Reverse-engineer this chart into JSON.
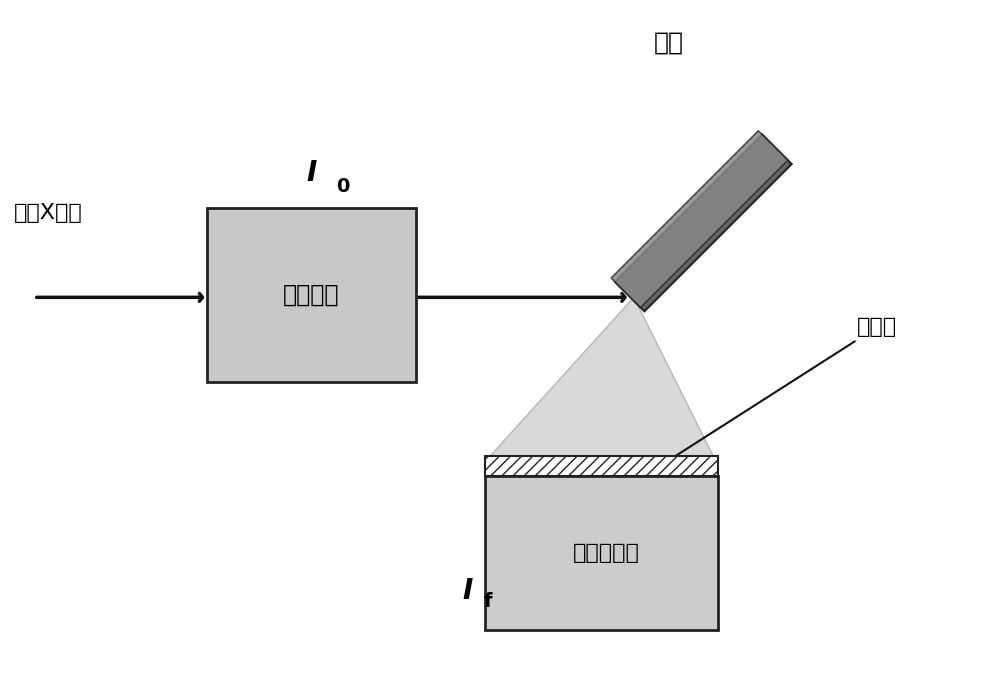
{
  "bg_color": "#ffffff",
  "fig_width": 10.0,
  "fig_height": 6.77,
  "label_incident": "入射X射线",
  "label_I0": "I",
  "label_I0_sub": "0",
  "label_pre_ion": "前电离室",
  "label_sample": "样品",
  "label_filter": "滤波片",
  "label_detector": "荧光探测器",
  "label_If": "I",
  "label_If_sub": "f",
  "box_color": "#c8c8c8",
  "box_edge": "#222222",
  "sample_color_dark": "#666666",
  "sample_color_mid": "#888888",
  "detector_color": "#cccccc",
  "cone_color": "#d0d0d0",
  "cone_edge": "#aaaaaa",
  "arrow_color": "#111111",
  "filter_hatch_color": "#444444"
}
